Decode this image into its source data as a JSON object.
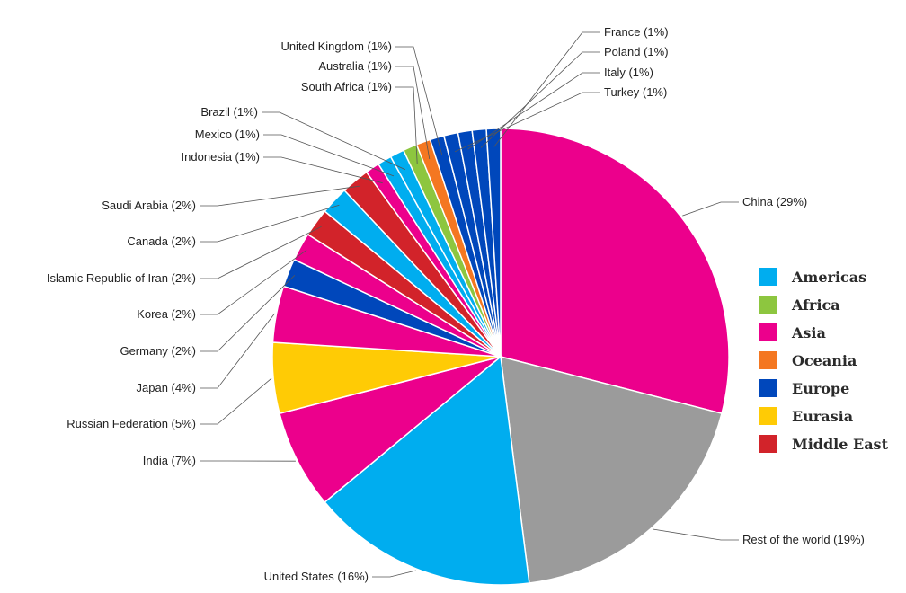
{
  "chart_data": {
    "type": "pie",
    "title": "",
    "slices": [
      {
        "label": "China (29%)",
        "value": 29,
        "region": "Asia"
      },
      {
        "label": "Rest of the world (19%)",
        "value": 19,
        "region": "Rest"
      },
      {
        "label": "United States (16%)",
        "value": 16,
        "region": "Americas"
      },
      {
        "label": "India (7%)",
        "value": 7,
        "region": "Asia"
      },
      {
        "label": "Russian Federation (5%)",
        "value": 5,
        "region": "Eurasia"
      },
      {
        "label": "Japan (4%)",
        "value": 4,
        "region": "Asia"
      },
      {
        "label": "Germany (2%)",
        "value": 2,
        "region": "Europe"
      },
      {
        "label": "Korea (2%)",
        "value": 2,
        "region": "Asia"
      },
      {
        "label": "Islamic Republic of Iran (2%)",
        "value": 2,
        "region": "Middle East"
      },
      {
        "label": "Canada (2%)",
        "value": 2,
        "region": "Americas"
      },
      {
        "label": "Saudi Arabia (2%)",
        "value": 2,
        "region": "Middle East"
      },
      {
        "label": "Indonesia (1%)",
        "value": 1,
        "region": "Asia"
      },
      {
        "label": "Mexico (1%)",
        "value": 1,
        "region": "Americas"
      },
      {
        "label": "Brazil (1%)",
        "value": 1,
        "region": "Americas"
      },
      {
        "label": "South Africa (1%)",
        "value": 1,
        "region": "Africa"
      },
      {
        "label": "Australia (1%)",
        "value": 1,
        "region": "Oceania"
      },
      {
        "label": "United Kingdom (1%)",
        "value": 1,
        "region": "Europe"
      },
      {
        "label": "Turkey (1%)",
        "value": 1,
        "region": "Europe"
      },
      {
        "label": "Italy (1%)",
        "value": 1,
        "region": "Europe"
      },
      {
        "label": "Poland (1%)",
        "value": 1,
        "region": "Europe"
      },
      {
        "label": "France (1%)",
        "value": 1,
        "region": "Europe"
      }
    ],
    "legend": {
      "placement": "right",
      "entries": [
        {
          "name": "Americas",
          "color": "#00ADEF"
        },
        {
          "name": "Africa",
          "color": "#8DC63F"
        },
        {
          "name": "Asia",
          "color": "#EC008C"
        },
        {
          "name": "Oceania",
          "color": "#F47721"
        },
        {
          "name": "Europe",
          "color": "#0047BB"
        },
        {
          "name": "Eurasia",
          "color": "#FFCB05"
        },
        {
          "name": "Middle East",
          "color": "#D2232A"
        }
      ]
    },
    "region_colors": {
      "Americas": "#00ADEF",
      "Africa": "#8DC63F",
      "Asia": "#EC008C",
      "Oceania": "#F47721",
      "Europe": "#0047BB",
      "Eurasia": "#FFCB05",
      "Middle East": "#D2232A",
      "Rest": "#9B9B9B"
    }
  }
}
